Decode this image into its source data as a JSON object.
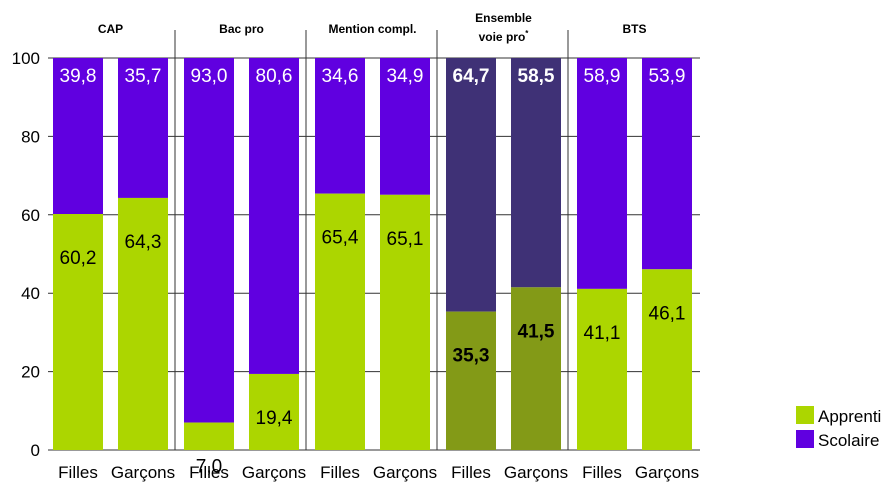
{
  "chart_data": {
    "type": "bar",
    "stacked": true,
    "normalized_percent": true,
    "ylim": [
      0,
      100
    ],
    "yticks": [
      0,
      20,
      40,
      60,
      80,
      100
    ],
    "grid": true,
    "legend_position": "right",
    "groups": [
      {
        "label": "CAP",
        "categories": [
          "Filles",
          "Garçons"
        ],
        "apprenti": [
          "60,2",
          "64,3"
        ],
        "scolaire": [
          "39,8",
          "35,7"
        ],
        "emphasis": false
      },
      {
        "label": "Bac pro",
        "categories": [
          "Filles",
          "Garçons"
        ],
        "apprenti": [
          "7,0",
          "19,4"
        ],
        "scolaire": [
          "93,0",
          "80,6"
        ],
        "emphasis": false
      },
      {
        "label": "Mention compl.",
        "categories": [
          "Filles",
          "Garçons"
        ],
        "apprenti": [
          "65,4",
          "65,1"
        ],
        "scolaire": [
          "34,6",
          "34,9"
        ],
        "emphasis": false
      },
      {
        "label_lines": [
          "Ensemble",
          "voie pro"
        ],
        "label_superscript": "*",
        "categories": [
          "Filles",
          "Garçons"
        ],
        "apprenti": [
          "35,3",
          "41,5"
        ],
        "scolaire": [
          "64,7",
          "58,5"
        ],
        "emphasis": true
      },
      {
        "label": "BTS",
        "categories": [
          "Filles",
          "Garçons"
        ],
        "apprenti": [
          "41,1",
          "46,1"
        ],
        "scolaire": [
          "58,9",
          "53,9"
        ],
        "emphasis": false
      }
    ],
    "series": [
      {
        "name": "Apprenti",
        "key": "apprenti",
        "color": "#acd600",
        "emphasis_color": "#839a17"
      },
      {
        "name": "Scolaire",
        "key": "scolaire",
        "color": "#6000e0",
        "emphasis_color": "#3f3176"
      }
    ]
  }
}
